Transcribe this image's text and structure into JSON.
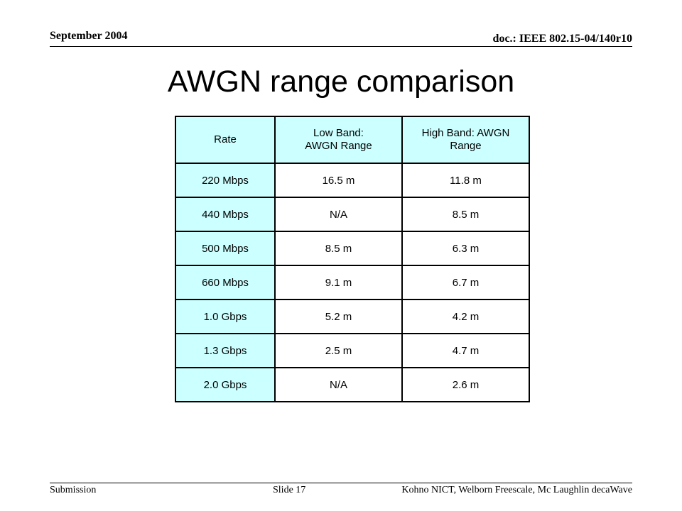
{
  "header": {
    "date": "September 2004",
    "doc": "doc.: IEEE 802.15-04/140r10"
  },
  "title": "AWGN range comparison",
  "table": {
    "headers": [
      "Rate",
      "Low Band: AWGN Range",
      "High Band: AWGN Range"
    ],
    "rows": [
      [
        "220 Mbps",
        "16.5 m",
        "11.8 m"
      ],
      [
        "440 Mbps",
        "N/A",
        "8.5 m"
      ],
      [
        "500 Mbps",
        "8.5 m",
        "6.3 m"
      ],
      [
        "660 Mbps",
        "9.1 m",
        "6.7 m"
      ],
      [
        "1.0 Gbps",
        "5.2 m",
        "4.2 m"
      ],
      [
        "1.3 Gbps",
        "2.5 m",
        "4.7 m"
      ],
      [
        "2.0 Gbps",
        "N/A",
        "2.6 m"
      ]
    ],
    "colors": {
      "highlight": "#ccffff",
      "plain": "#ffffff"
    }
  },
  "footer": {
    "left": "Submission",
    "slide": "Slide 17",
    "authors": "Kohno NICT, Welborn Freescale,  Mc Laughlin decaWave"
  }
}
